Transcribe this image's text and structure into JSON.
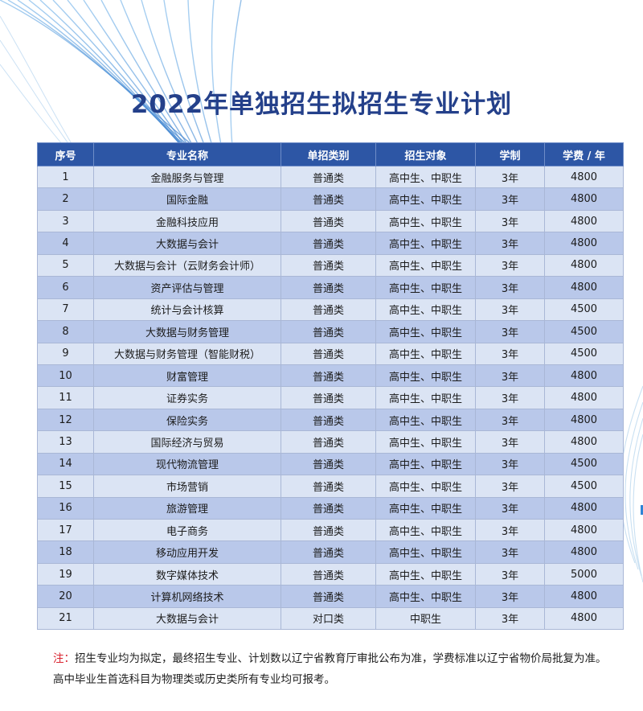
{
  "colors": {
    "title": "#24408a",
    "header_bg": "#2d56a5",
    "row_light": "#dbe4f4",
    "row_dark": "#b9c8ea",
    "note_label": "#d9232f"
  },
  "title": "2022年单独招生拟招生专业计划",
  "table": {
    "headers": [
      "序号",
      "专业名称",
      "单招类别",
      "招生对象",
      "学制",
      "学费 / 年"
    ],
    "rows": [
      [
        "1",
        "金融服务与管理",
        "普通类",
        "高中生、中职生",
        "3年",
        "4800"
      ],
      [
        "2",
        "国际金融",
        "普通类",
        "高中生、中职生",
        "3年",
        "4800"
      ],
      [
        "3",
        "金融科技应用",
        "普通类",
        "高中生、中职生",
        "3年",
        "4800"
      ],
      [
        "4",
        "大数据与会计",
        "普通类",
        "高中生、中职生",
        "3年",
        "4800"
      ],
      [
        "5",
        "大数据与会计（云财务会计师）",
        "普通类",
        "高中生、中职生",
        "3年",
        "4800"
      ],
      [
        "6",
        "资产评估与管理",
        "普通类",
        "高中生、中职生",
        "3年",
        "4800"
      ],
      [
        "7",
        "统计与会计核算",
        "普通类",
        "高中生、中职生",
        "3年",
        "4500"
      ],
      [
        "8",
        "大数据与财务管理",
        "普通类",
        "高中生、中职生",
        "3年",
        "4500"
      ],
      [
        "9",
        "大数据与财务管理（智能财税）",
        "普通类",
        "高中生、中职生",
        "3年",
        "4500"
      ],
      [
        "10",
        "财富管理",
        "普通类",
        "高中生、中职生",
        "3年",
        "4800"
      ],
      [
        "11",
        "证券实务",
        "普通类",
        "高中生、中职生",
        "3年",
        "4800"
      ],
      [
        "12",
        "保险实务",
        "普通类",
        "高中生、中职生",
        "3年",
        "4800"
      ],
      [
        "13",
        "国际经济与贸易",
        "普通类",
        "高中生、中职生",
        "3年",
        "4800"
      ],
      [
        "14",
        "现代物流管理",
        "普通类",
        "高中生、中职生",
        "3年",
        "4500"
      ],
      [
        "15",
        "市场营销",
        "普通类",
        "高中生、中职生",
        "3年",
        "4500"
      ],
      [
        "16",
        "旅游管理",
        "普通类",
        "高中生、中职生",
        "3年",
        "4800"
      ],
      [
        "17",
        "电子商务",
        "普通类",
        "高中生、中职生",
        "3年",
        "4800"
      ],
      [
        "18",
        "移动应用开发",
        "普通类",
        "高中生、中职生",
        "3年",
        "4800"
      ],
      [
        "19",
        "数字媒体技术",
        "普通类",
        "高中生、中职生",
        "3年",
        "5000"
      ],
      [
        "20",
        "计算机网络技术",
        "普通类",
        "高中生、中职生",
        "3年",
        "4800"
      ],
      [
        "21",
        "大数据与会计",
        "对口类",
        "中职生",
        "3年",
        "4800"
      ]
    ]
  },
  "note": {
    "label": "注：",
    "text": "招生专业均为拟定，最终招生专业、计划数以辽宁省教育厅审批公布为准，学费标准以辽宁省物价局批复为准。高中毕业生首选科目为物理类或历史类所有专业均可报考。"
  }
}
